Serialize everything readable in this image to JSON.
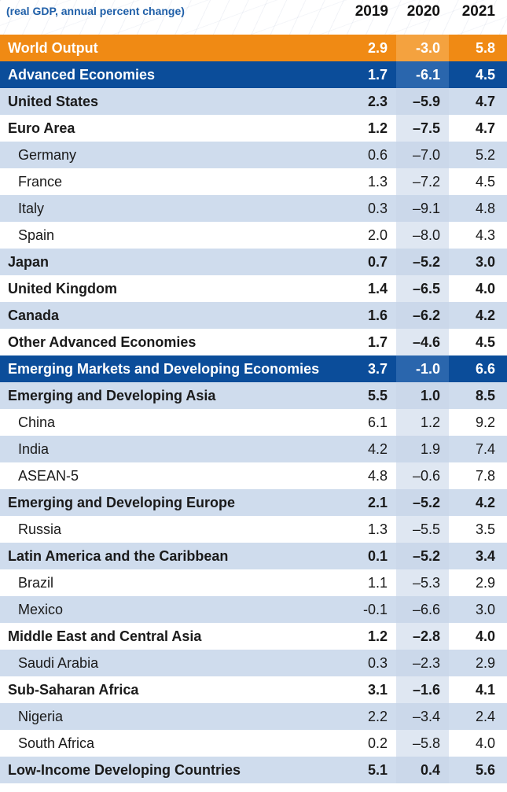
{
  "caption": "(real GDP, annual percent change)",
  "years": [
    "2019",
    "2020",
    "2021"
  ],
  "colors": {
    "world_row": "#f08a14",
    "group_row": "#0b4d9a",
    "light_row": "#cfdced",
    "caption": "#1f5fa8"
  },
  "rows": [
    {
      "label": "World Output",
      "v": [
        "2.9",
        "-3.0",
        "5.8"
      ],
      "style": "world"
    },
    {
      "label": "Advanced Economies",
      "v": [
        "1.7",
        "-6.1",
        "4.5"
      ],
      "style": "blue"
    },
    {
      "label": "United States",
      "v": [
        "2.3",
        "–5.9",
        "4.7"
      ],
      "style": "bold"
    },
    {
      "label": "Euro Area",
      "v": [
        "1.2",
        "–7.5",
        "4.7"
      ],
      "style": "bold"
    },
    {
      "label": "Germany",
      "v": [
        "0.6",
        "–7.0",
        "5.2"
      ],
      "style": "indent"
    },
    {
      "label": "France",
      "v": [
        "1.3",
        "–7.2",
        "4.5"
      ],
      "style": "indent"
    },
    {
      "label": "Italy",
      "v": [
        "0.3",
        "–9.1",
        "4.8"
      ],
      "style": "indent"
    },
    {
      "label": "Spain",
      "v": [
        "2.0",
        "–8.0",
        "4.3"
      ],
      "style": "indent"
    },
    {
      "label": "Japan",
      "v": [
        "0.7",
        "–5.2",
        "3.0"
      ],
      "style": "bold"
    },
    {
      "label": "United Kingdom",
      "v": [
        "1.4",
        "–6.5",
        "4.0"
      ],
      "style": "bold"
    },
    {
      "label": "Canada",
      "v": [
        "1.6",
        "–6.2",
        "4.2"
      ],
      "style": "bold"
    },
    {
      "label": "Other Advanced Economies",
      "v": [
        "1.7",
        "–4.6",
        "4.5"
      ],
      "style": "bold"
    },
    {
      "label": "Emerging Markets and Developing Economies",
      "v": [
        "3.7",
        "-1.0",
        "6.6"
      ],
      "style": "blue"
    },
    {
      "label": "Emerging and Developing Asia",
      "v": [
        "5.5",
        "1.0",
        "8.5"
      ],
      "style": "bold"
    },
    {
      "label": "China",
      "v": [
        "6.1",
        "1.2",
        "9.2"
      ],
      "style": "indent"
    },
    {
      "label": "India",
      "v": [
        "4.2",
        "1.9",
        "7.4"
      ],
      "style": "indent"
    },
    {
      "label": "ASEAN-5",
      "v": [
        "4.8",
        "–0.6",
        "7.8"
      ],
      "style": "indent"
    },
    {
      "label": "Emerging and Developing Europe",
      "v": [
        "2.1",
        "–5.2",
        "4.2"
      ],
      "style": "bold"
    },
    {
      "label": "Russia",
      "v": [
        "1.3",
        "–5.5",
        "3.5"
      ],
      "style": "indent"
    },
    {
      "label": "Latin America and the Caribbean",
      "v": [
        "0.1",
        "–5.2",
        "3.4"
      ],
      "style": "bold"
    },
    {
      "label": "Brazil",
      "v": [
        "1.1",
        "–5.3",
        "2.9"
      ],
      "style": "indent"
    },
    {
      "label": "Mexico",
      "v": [
        "-0.1",
        "–6.6",
        "3.0"
      ],
      "style": "indent"
    },
    {
      "label": "Middle East and Central Asia",
      "v": [
        "1.2",
        "–2.8",
        "4.0"
      ],
      "style": "bold"
    },
    {
      "label": "Saudi Arabia",
      "v": [
        "0.3",
        "–2.3",
        "2.9"
      ],
      "style": "indent"
    },
    {
      "label": "Sub-Saharan Africa",
      "v": [
        "3.1",
        "–1.6",
        "4.1"
      ],
      "style": "bold"
    },
    {
      "label": "Nigeria",
      "v": [
        "2.2",
        "–3.4",
        "2.4"
      ],
      "style": "indent"
    },
    {
      "label": "South Africa",
      "v": [
        "0.2",
        "–5.8",
        "4.0"
      ],
      "style": "indent"
    },
    {
      "label": "Low-Income Developing Countries",
      "v": [
        "5.1",
        "0.4",
        "5.6"
      ],
      "style": "bold"
    }
  ],
  "chart_data": {
    "type": "table",
    "title": "",
    "caption": "(real GDP, annual percent change)",
    "columns": [
      "2019",
      "2020",
      "2021"
    ],
    "rows": [
      {
        "name": "World Output",
        "values": [
          2.9,
          -3.0,
          5.8
        ]
      },
      {
        "name": "Advanced Economies",
        "values": [
          1.7,
          -6.1,
          4.5
        ]
      },
      {
        "name": "United States",
        "values": [
          2.3,
          -5.9,
          4.7
        ]
      },
      {
        "name": "Euro Area",
        "values": [
          1.2,
          -7.5,
          4.7
        ]
      },
      {
        "name": "Germany",
        "values": [
          0.6,
          -7.0,
          5.2
        ]
      },
      {
        "name": "France",
        "values": [
          1.3,
          -7.2,
          4.5
        ]
      },
      {
        "name": "Italy",
        "values": [
          0.3,
          -9.1,
          4.8
        ]
      },
      {
        "name": "Spain",
        "values": [
          2.0,
          -8.0,
          4.3
        ]
      },
      {
        "name": "Japan",
        "values": [
          0.7,
          -5.2,
          3.0
        ]
      },
      {
        "name": "United Kingdom",
        "values": [
          1.4,
          -6.5,
          4.0
        ]
      },
      {
        "name": "Canada",
        "values": [
          1.6,
          -6.2,
          4.2
        ]
      },
      {
        "name": "Other Advanced Economies",
        "values": [
          1.7,
          -4.6,
          4.5
        ]
      },
      {
        "name": "Emerging Markets and Developing Economies",
        "values": [
          3.7,
          -1.0,
          6.6
        ]
      },
      {
        "name": "Emerging and Developing Asia",
        "values": [
          5.5,
          1.0,
          8.5
        ]
      },
      {
        "name": "China",
        "values": [
          6.1,
          1.2,
          9.2
        ]
      },
      {
        "name": "India",
        "values": [
          4.2,
          1.9,
          7.4
        ]
      },
      {
        "name": "ASEAN-5",
        "values": [
          4.8,
          -0.6,
          7.8
        ]
      },
      {
        "name": "Emerging and Developing Europe",
        "values": [
          2.1,
          -5.2,
          4.2
        ]
      },
      {
        "name": "Russia",
        "values": [
          1.3,
          -5.5,
          3.5
        ]
      },
      {
        "name": "Latin America and the Caribbean",
        "values": [
          0.1,
          -5.2,
          3.4
        ]
      },
      {
        "name": "Brazil",
        "values": [
          1.1,
          -5.3,
          2.9
        ]
      },
      {
        "name": "Mexico",
        "values": [
          -0.1,
          -6.6,
          3.0
        ]
      },
      {
        "name": "Middle East and Central Asia",
        "values": [
          1.2,
          -2.8,
          4.0
        ]
      },
      {
        "name": "Saudi Arabia",
        "values": [
          0.3,
          -2.3,
          2.9
        ]
      },
      {
        "name": "Sub-Saharan Africa",
        "values": [
          3.1,
          -1.6,
          4.1
        ]
      },
      {
        "name": "Nigeria",
        "values": [
          2.2,
          -3.4,
          2.4
        ]
      },
      {
        "name": "South Africa",
        "values": [
          0.2,
          -5.8,
          4.0
        ]
      },
      {
        "name": "Low-Income Developing Countries",
        "values": [
          5.1,
          0.4,
          5.6
        ]
      }
    ]
  }
}
